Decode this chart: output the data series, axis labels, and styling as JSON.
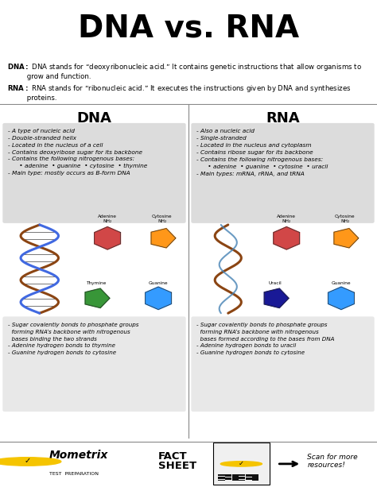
{
  "title": "DNA vs. RNA",
  "title_bg": "#F5C400",
  "title_color": "#000000",
  "title_fontsize": 28,
  "bg_color": "#FFFFFF",
  "dna_label": "DNA",
  "rna_label": "RNA",
  "dna_bullets": [
    "- A type of nucleic acid",
    "- Double-stranded helix",
    "- Located in the nucleus of a cell",
    "- Contains deoxyribose sugar for its backbone",
    "- Contains the following nitrogenous bases:",
    "      • adenine  • guanine  • cytosine  • thymine",
    "- Main type: mostly occurs as B-form DNA"
  ],
  "rna_bullets": [
    "- Also a nucleic acid",
    "- Single-stranded",
    "- Located in the nucleus and cytoplasm",
    "- Contains ribose sugar for its backbone",
    "- Contains the following nitrogenous bases:",
    "      • adenine  • guanine  • cytosine  • uracil",
    "- Main types: mRNA, rRNA, and tRNA"
  ],
  "dna_bottom_bullets": [
    "- Sugar covalently bonds to phosphate groups",
    "  forming RNA’s backbone with nitrogenous",
    "  bases binding the two strands",
    "- Adenine hydrogen bonds to thymine",
    "- Guanine hydrogen bonds to cytosine"
  ],
  "rna_bottom_bullets": [
    "- Sugar covalently bonds to phosphate groups",
    "  forming RNA’s backbone with nitrogenous",
    "  bases formed according to the bases from DNA",
    "- Adenine hydrogen bonds to uracil",
    "- Guanine hydrogen bonds to cytosine"
  ],
  "panel_bg": "#DCDCDC",
  "bottom_bg": "#E8E8E8",
  "separator_color": "#888888",
  "footer_bg": "#FFFFFF",
  "mometrix_text": "Mometrix",
  "mometrix_sub": "TEST  PREPARATION",
  "fact_sheet_text": "FACT\nSHEET",
  "scan_text": "Scan for more\nresources!",
  "adenine_color": "#CC3333",
  "cytosine_color": "#FF8C00",
  "thymine_color": "#228B22",
  "guanine_color": "#1E90FF",
  "uracil_color": "#00008B"
}
